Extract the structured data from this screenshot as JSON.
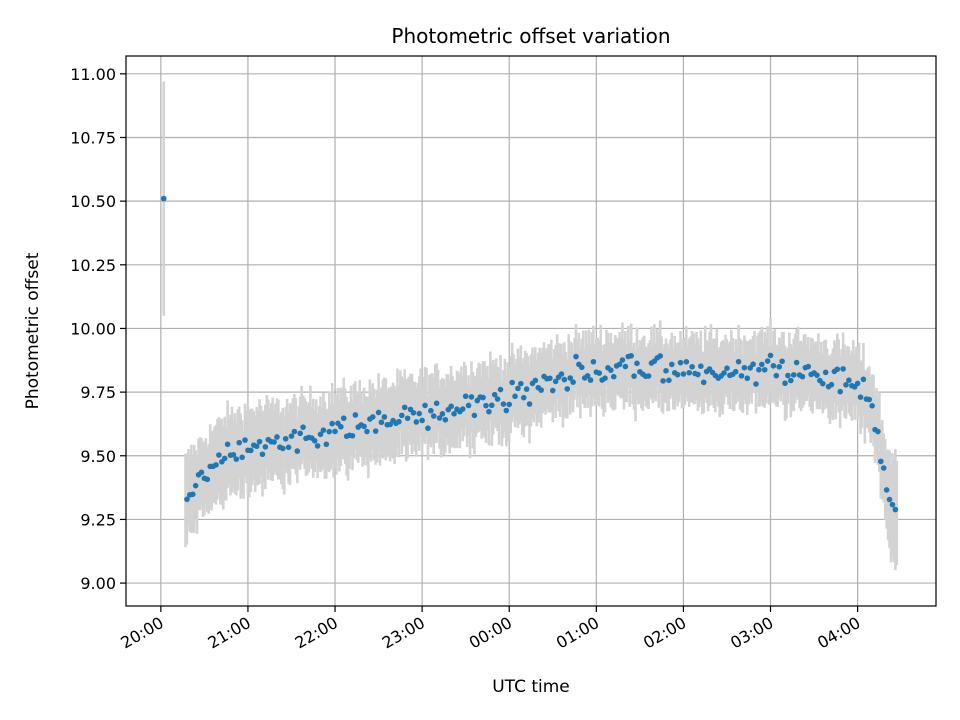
{
  "chart_data": {
    "type": "scatter",
    "title": "Photometric offset variation",
    "xlabel": "UTC time",
    "ylabel": "Photometric offset",
    "x_is_time": true,
    "x_range": [
      "20:00",
      "04:53"
    ],
    "xlim_hours": [
      19.6,
      28.9
    ],
    "ylim": [
      8.91,
      11.07
    ],
    "x_tick_labels": [
      "20:00",
      "21:00",
      "22:00",
      "23:00",
      "00:00",
      "01:00",
      "02:00",
      "03:00",
      "04:00"
    ],
    "y_ticks": [
      9.0,
      9.25,
      9.5,
      9.75,
      10.0,
      10.25,
      10.5,
      10.75,
      11.0
    ],
    "y_tick_labels": [
      "9.00",
      "9.25",
      "9.50",
      "9.75",
      "10.00",
      "10.25",
      "10.50",
      "10.75",
      "11.00"
    ],
    "grid": true,
    "legend": "none",
    "point_color": "#1f77b4",
    "errorbar_color": "#d3d3d3",
    "series": [
      {
        "anchors": [
          {
            "time": "20:02",
            "offset": 10.51,
            "error": 0.46
          },
          {
            "time": "20:17",
            "offset": 9.32,
            "error": 0.16
          },
          {
            "time": "20:30",
            "offset": 9.42,
            "error": 0.15
          },
          {
            "time": "20:45",
            "offset": 9.5,
            "error": 0.15
          },
          {
            "time": "21:00",
            "offset": 9.53,
            "error": 0.15
          },
          {
            "time": "21:30",
            "offset": 9.56,
            "error": 0.14
          },
          {
            "time": "22:00",
            "offset": 9.6,
            "error": 0.14
          },
          {
            "time": "22:30",
            "offset": 9.63,
            "error": 0.14
          },
          {
            "time": "23:00",
            "offset": 9.66,
            "error": 0.14
          },
          {
            "time": "23:30",
            "offset": 9.7,
            "error": 0.14
          },
          {
            "time": "00:00",
            "offset": 9.73,
            "error": 0.14
          },
          {
            "time": "00:30",
            "offset": 9.8,
            "error": 0.13
          },
          {
            "time": "01:00",
            "offset": 9.84,
            "error": 0.13
          },
          {
            "time": "01:30",
            "offset": 9.84,
            "error": 0.13
          },
          {
            "time": "02:00",
            "offset": 9.82,
            "error": 0.13
          },
          {
            "time": "02:30",
            "offset": 9.83,
            "error": 0.13
          },
          {
            "time": "03:00",
            "offset": 9.84,
            "error": 0.13
          },
          {
            "time": "03:30",
            "offset": 9.82,
            "error": 0.13
          },
          {
            "time": "04:00",
            "offset": 9.78,
            "error": 0.13
          },
          {
            "time": "04:10",
            "offset": 9.7,
            "error": 0.13
          },
          {
            "time": "04:15",
            "offset": 9.55,
            "error": 0.15
          },
          {
            "time": "04:20",
            "offset": 9.38,
            "error": 0.15
          },
          {
            "time": "04:27",
            "offset": 9.26,
            "error": 0.23
          }
        ],
        "scatter_amplitude": 0.04,
        "sample_interval_minutes": 1
      }
    ]
  }
}
